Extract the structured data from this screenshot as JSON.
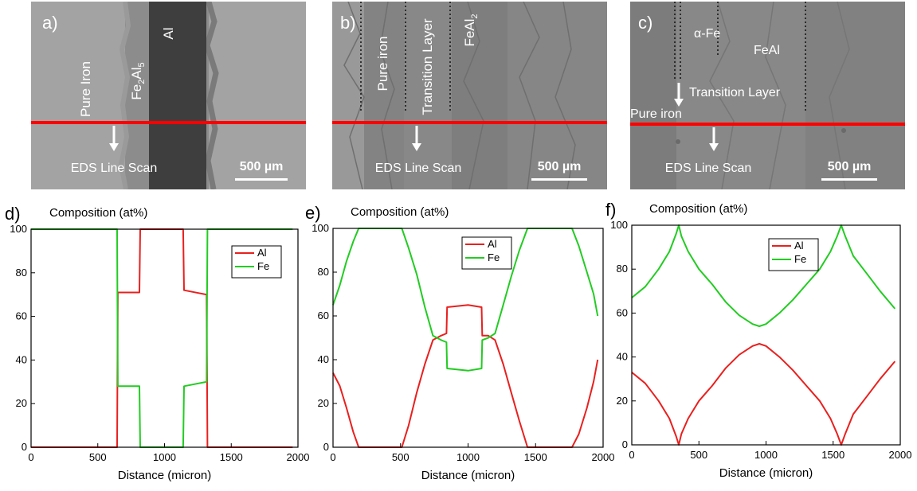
{
  "images": [
    {
      "panel": "a)",
      "labels": {
        "pure": "Pure Iron",
        "phase_prefix": "Fe",
        "phase_sub1": "2",
        "phase_mid": "Al",
        "phase_sub2": "5",
        "al": "Al"
      },
      "scan_label": "EDS Line Scan",
      "scale_bar": "500 µm"
    },
    {
      "panel": "b)",
      "labels": {
        "pure": "Pure iron",
        "transition": "Transition Layer",
        "feal2_prefix": "FeAl",
        "feal2_sub": "2"
      },
      "scan_label": "EDS Line Scan",
      "scale_bar": "500 µm"
    },
    {
      "panel": "c)",
      "labels": {
        "alpha_fe": "α-Fe",
        "feal": "FeAl",
        "transition": "Transition Layer",
        "pure": "Pure iron"
      },
      "scan_label": "EDS Line Scan",
      "scale_bar": "500 µm"
    }
  ],
  "chart_data": [
    {
      "panel": "d)",
      "type": "line",
      "title": "Composition (at%)",
      "xlabel": "Distance (micron)",
      "ylabel": "",
      "xlim": [
        0,
        2000
      ],
      "ylim": [
        0,
        100
      ],
      "xticks": [
        0,
        500,
        1000,
        1500,
        2000
      ],
      "yticks": [
        0,
        20,
        40,
        60,
        80,
        100
      ],
      "legend_position": "top-right",
      "series": [
        {
          "name": "Al",
          "color": "#e8201e",
          "points": [
            [
              0,
              0
            ],
            [
              645,
              0
            ],
            [
              650,
              71
            ],
            [
              812,
              71
            ],
            [
              818,
              100
            ],
            [
              1140,
              100
            ],
            [
              1146,
              72
            ],
            [
              1315,
              70
            ],
            [
              1322,
              0
            ],
            [
              1960,
              0
            ]
          ]
        },
        {
          "name": "Fe",
          "color": "#22cc22",
          "points": [
            [
              0,
              100
            ],
            [
              645,
              100
            ],
            [
              650,
              28
            ],
            [
              812,
              28
            ],
            [
              818,
              0
            ],
            [
              1140,
              0
            ],
            [
              1146,
              28
            ],
            [
              1315,
              30
            ],
            [
              1322,
              100
            ],
            [
              1960,
              100
            ]
          ]
        }
      ]
    },
    {
      "panel": "e)",
      "type": "line",
      "title": "Composition (at%)",
      "xlabel": "Distance (micron)",
      "ylabel": "",
      "xlim": [
        0,
        2000
      ],
      "ylim": [
        0,
        100
      ],
      "xticks": [
        0,
        500,
        1000,
        1500,
        2000
      ],
      "yticks": [
        0,
        20,
        40,
        60,
        80,
        100
      ],
      "legend_position": "top-right",
      "series": [
        {
          "name": "Al",
          "color": "#e8201e",
          "points": [
            [
              0,
              34
            ],
            [
              50,
              28
            ],
            [
              100,
              18
            ],
            [
              150,
              7
            ],
            [
              190,
              0
            ],
            [
              510,
              0
            ],
            [
              560,
              10
            ],
            [
              620,
              25
            ],
            [
              680,
              38
            ],
            [
              740,
              49
            ],
            [
              800,
              51
            ],
            [
              840,
              52
            ],
            [
              845,
              64
            ],
            [
              1000,
              65
            ],
            [
              1100,
              64
            ],
            [
              1105,
              51
            ],
            [
              1150,
              51
            ],
            [
              1200,
              49
            ],
            [
              1260,
              38
            ],
            [
              1320,
              25
            ],
            [
              1380,
              12
            ],
            [
              1440,
              0
            ],
            [
              1770,
              0
            ],
            [
              1820,
              6
            ],
            [
              1880,
              18
            ],
            [
              1930,
              30
            ],
            [
              1960,
              40
            ]
          ]
        },
        {
          "name": "Fe",
          "color": "#22cc22",
          "points": [
            [
              0,
              65
            ],
            [
              50,
              74
            ],
            [
              100,
              85
            ],
            [
              150,
              94
            ],
            [
              190,
              100
            ],
            [
              510,
              100
            ],
            [
              560,
              91
            ],
            [
              620,
              79
            ],
            [
              680,
              64
            ],
            [
              740,
              51
            ],
            [
              800,
              49
            ],
            [
              840,
              48
            ],
            [
              845,
              36
            ],
            [
              1000,
              35
            ],
            [
              1100,
              36
            ],
            [
              1105,
              49
            ],
            [
              1150,
              50
            ],
            [
              1200,
              52
            ],
            [
              1260,
              65
            ],
            [
              1320,
              78
            ],
            [
              1380,
              90
            ],
            [
              1440,
              100
            ],
            [
              1770,
              100
            ],
            [
              1820,
              92
            ],
            [
              1880,
              80
            ],
            [
              1930,
              70
            ],
            [
              1960,
              60
            ]
          ]
        }
      ]
    },
    {
      "panel": "f)",
      "type": "line",
      "title": "Composition (at%)",
      "xlabel": "Distance (micron)",
      "ylabel": "",
      "xlim": [
        0,
        2000
      ],
      "ylim": [
        0,
        100
      ],
      "xticks": [
        0,
        500,
        1000,
        1500,
        2000
      ],
      "yticks": [
        0,
        20,
        40,
        60,
        80,
        100
      ],
      "legend_position": "top-center",
      "series": [
        {
          "name": "Al",
          "color": "#e8201e",
          "points": [
            [
              0,
              33
            ],
            [
              100,
              28
            ],
            [
              200,
              20
            ],
            [
              280,
              12
            ],
            [
              330,
              4
            ],
            [
              350,
              0
            ],
            [
              370,
              5
            ],
            [
              420,
              12
            ],
            [
              500,
              20
            ],
            [
              600,
              27
            ],
            [
              700,
              35
            ],
            [
              800,
              41
            ],
            [
              900,
              45
            ],
            [
              950,
              46
            ],
            [
              1000,
              45
            ],
            [
              1100,
              40
            ],
            [
              1200,
              34
            ],
            [
              1300,
              27
            ],
            [
              1400,
              20
            ],
            [
              1480,
              12
            ],
            [
              1530,
              5
            ],
            [
              1560,
              0
            ],
            [
              1590,
              5
            ],
            [
              1650,
              14
            ],
            [
              1750,
              22
            ],
            [
              1850,
              30
            ],
            [
              1960,
              38
            ]
          ]
        },
        {
          "name": "Fe",
          "color": "#22cc22",
          "points": [
            [
              0,
              67
            ],
            [
              100,
              72
            ],
            [
              200,
              80
            ],
            [
              280,
              88
            ],
            [
              330,
              96
            ],
            [
              350,
              100
            ],
            [
              370,
              95
            ],
            [
              420,
              88
            ],
            [
              500,
              80
            ],
            [
              600,
              73
            ],
            [
              700,
              65
            ],
            [
              800,
              59
            ],
            [
              900,
              55
            ],
            [
              950,
              54
            ],
            [
              1000,
              55
            ],
            [
              1100,
              60
            ],
            [
              1200,
              66
            ],
            [
              1300,
              73
            ],
            [
              1400,
              80
            ],
            [
              1480,
              88
            ],
            [
              1530,
              95
            ],
            [
              1560,
              100
            ],
            [
              1590,
              95
            ],
            [
              1650,
              86
            ],
            [
              1750,
              78
            ],
            [
              1850,
              70
            ],
            [
              1960,
              62
            ]
          ]
        }
      ]
    }
  ]
}
